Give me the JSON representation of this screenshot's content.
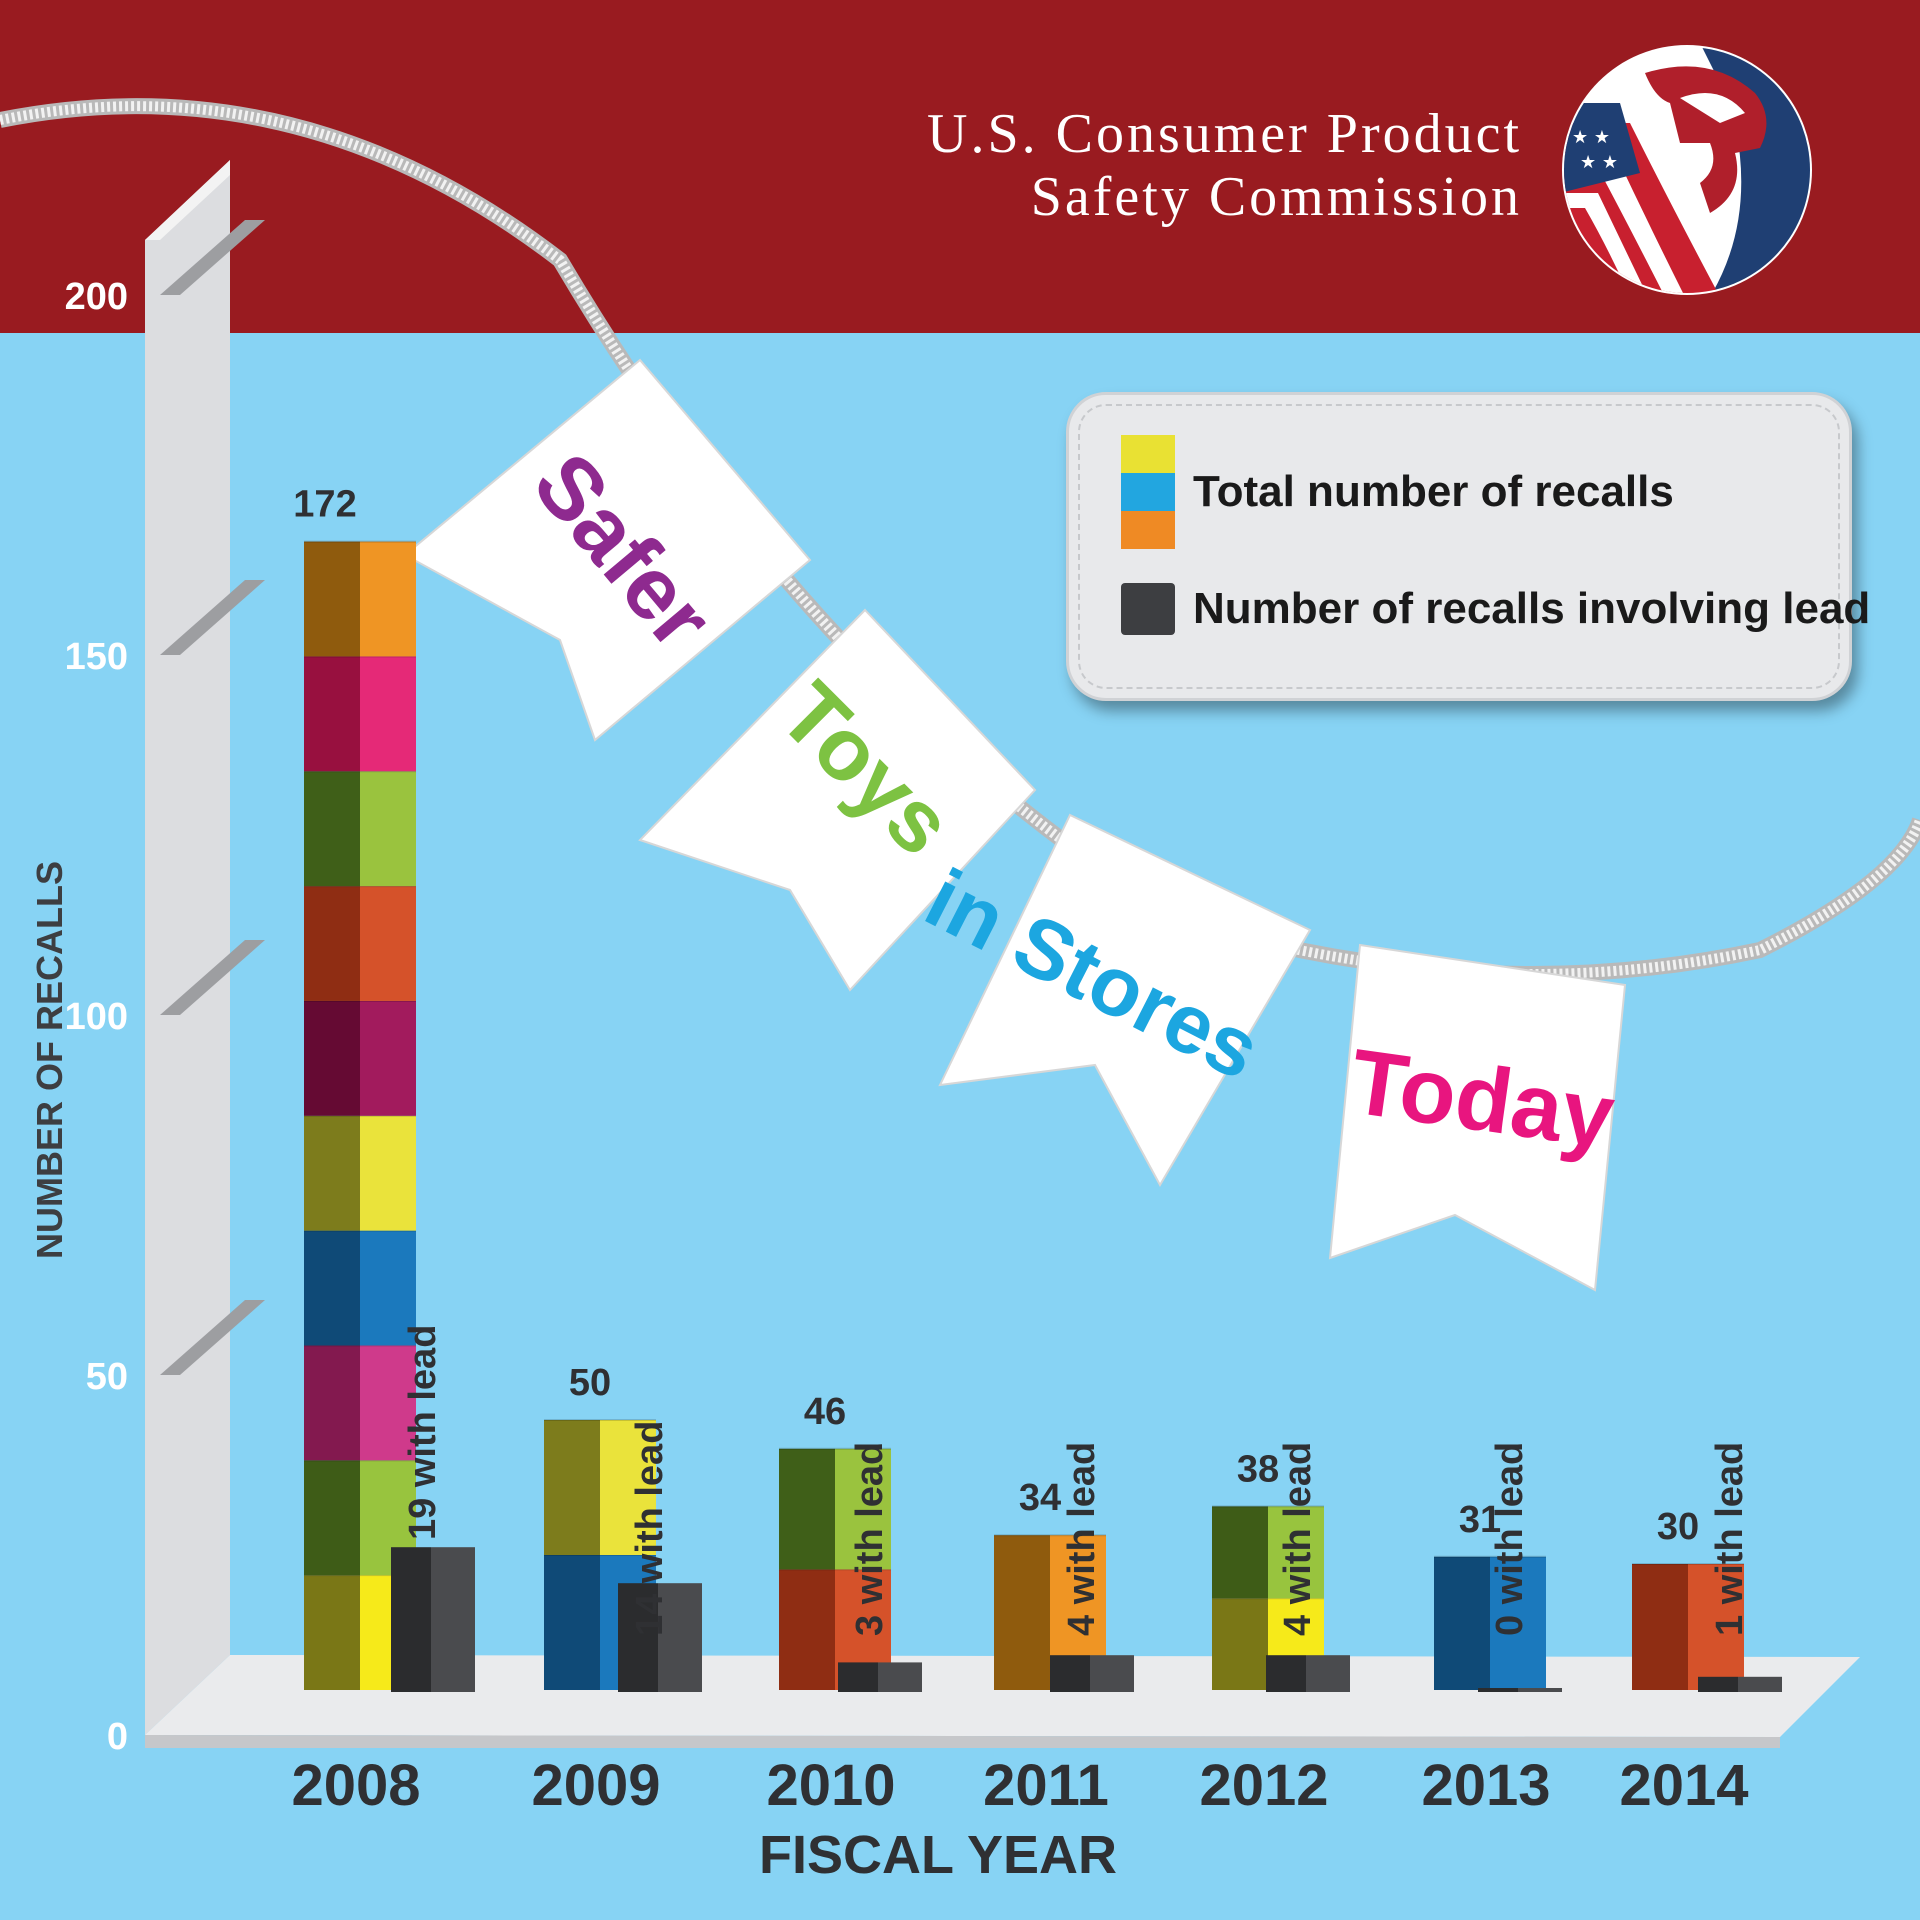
{
  "header": {
    "org_line1": "U.S. Consumer Product",
    "org_line2": "Safety Commission"
  },
  "banner": {
    "flags": [
      {
        "text": "Safer",
        "color": "#8e2a8f"
      },
      {
        "text": "Toys",
        "color": "#7dc242"
      },
      {
        "text": "in Stores",
        "color": "#1ca6e0"
      },
      {
        "text": "Today",
        "color": "#e8157f"
      }
    ]
  },
  "legend": {
    "total_label": "Total number of recalls",
    "lead_label": "Number of recalls involving lead"
  },
  "colors": {
    "header_bg": "#991b20",
    "background": "#87d3f4",
    "lead_block": "#3d3e41"
  },
  "chart_data": {
    "type": "bar",
    "xlabel": "FISCAL YEAR",
    "ylabel": "NUMBER OF RECALLS",
    "ylim": [
      0,
      200
    ],
    "yticks": [
      0,
      50,
      100,
      150,
      200
    ],
    "categories": [
      "2008",
      "2009",
      "2010",
      "2011",
      "2012",
      "2013",
      "2014"
    ],
    "series": [
      {
        "name": "Total number of recalls",
        "values": [
          172,
          50,
          46,
          34,
          38,
          31,
          30
        ]
      },
      {
        "name": "Number of recalls involving lead",
        "values": [
          19,
          14,
          3,
          4,
          4,
          0,
          1
        ]
      }
    ],
    "lead_labels": [
      "19 with lead",
      "14 with lead",
      "3 with lead",
      "4 with lead",
      "4 with lead",
      "0 with lead",
      "1 with lead"
    ],
    "grid": false,
    "legend_position": "top-right"
  }
}
